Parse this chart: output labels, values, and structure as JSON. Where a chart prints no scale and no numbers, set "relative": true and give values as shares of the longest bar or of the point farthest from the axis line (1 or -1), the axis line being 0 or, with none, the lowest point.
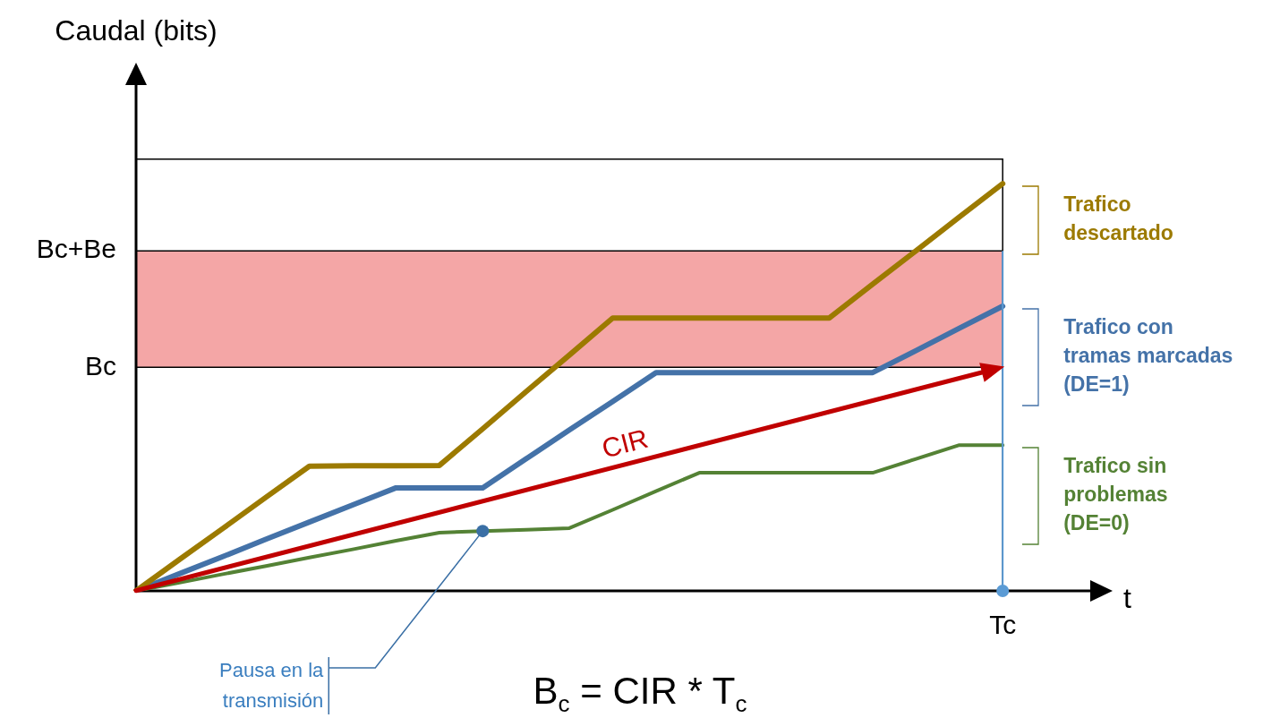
{
  "chart_data": {
    "type": "line",
    "xlabel": "t",
    "ylabel": "Caudal (bits)",
    "relative": true,
    "categories": [
      null,
      null,
      null,
      null,
      null,
      null,
      null,
      null,
      null,
      null,
      null,
      null,
      null,
      null,
      null,
      null,
      null,
      null,
      null,
      null,
      null,
      null,
      null
    ],
    "series": [
      {
        "name": "Trafico descartado",
        "color": "#9c7a00",
        "values": [
          0,
          0.077,
          0.153,
          0.23,
          0.306,
          0.307,
          0.307,
          0.308,
          0.398,
          0.489,
          0.579,
          0.67,
          0.67,
          0.67,
          0.67,
          0.67,
          0.67,
          0.753,
          0.835,
          0.918,
          1,
          null,
          null
        ]
      },
      {
        "name": "Trafico con tramas marcadas (DE=1)",
        "color": "#4472a8",
        "values": [
          0,
          0.042,
          0.084,
          0.127,
          0.169,
          0.211,
          0.253,
          0.253,
          0.253,
          0.324,
          0.395,
          0.465,
          0.536,
          0.536,
          0.536,
          0.536,
          0.536,
          0.536,
          0.59,
          0.645,
          0.699,
          null,
          null
        ]
      },
      {
        "name": "Trafico sin problemas (DE=0)",
        "color": "#548235",
        "values": [
          0,
          0.02,
          0.041,
          0.061,
          0.082,
          0.102,
          0.123,
          0.143,
          0.147,
          0.15,
          0.154,
          0.199,
          0.245,
          0.29,
          0.29,
          0.29,
          0.29,
          0.29,
          0.324,
          0.358,
          0.358,
          null,
          null
        ]
      }
    ],
    "bands": [
      {
        "axis": "y",
        "from": 0.549,
        "to": 0.835,
        "color": "#f4a6a6"
      }
    ],
    "ref_lines": [
      {
        "axis": "y",
        "value": 1.06,
        "color": "#000000"
      },
      {
        "axis": "y",
        "value": 0.835,
        "label": "Bc+Be",
        "color": "#000000"
      },
      {
        "axis": "y",
        "value": 0.549,
        "label": "Bc",
        "color": "#000000"
      }
    ],
    "annotations": [
      {
        "text": "Tc",
        "y": 0
      },
      {
        "text": "CIR",
        "y": 0.549
      },
      "Pausa en la transmisión",
      "B$_{c}$ = CIR * T$_{c}$"
    ],
    "legend": false,
    "marker": "none",
    "line_style": "solid"
  }
}
